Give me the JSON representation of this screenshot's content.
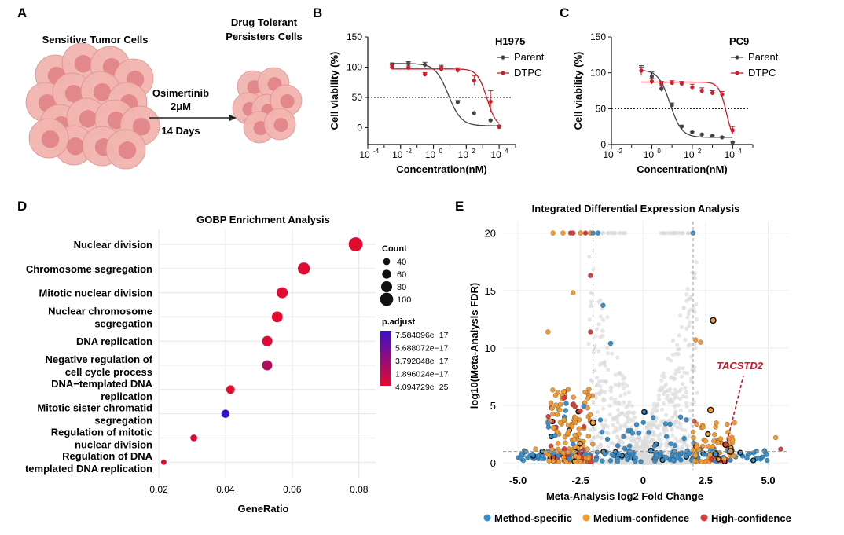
{
  "panels": {
    "A": {
      "letter": "A",
      "left_title": "Sensitive Tumor Cells",
      "right_title_line1": "Drug Tolerant",
      "right_title_line2": "Persisters Cells",
      "drug_line1": "Osimertinib",
      "drug_line2": "2μM",
      "duration": "14 Days",
      "colors": {
        "cell_fill": "#f2b5b0",
        "cell_core": "#e07f82",
        "arrow": "#222222"
      }
    },
    "B": {
      "letter": "B"
    },
    "C": {
      "letter": "C"
    },
    "D": {
      "letter": "D"
    },
    "E": {
      "letter": "E"
    }
  },
  "chart_data": [
    {
      "panel": "B",
      "type": "line",
      "title": "H1975",
      "xlabel": "Concentration(nM)",
      "ylabel": "Cell viability (%)",
      "xscale": "log10",
      "xlim": [
        0.0001,
        100000
      ],
      "ylim": [
        -28,
        150
      ],
      "yticks": [
        0,
        50,
        100,
        150
      ],
      "xtick_labels": [
        "10",
        "10",
        "10",
        "10",
        "10"
      ],
      "xtick_exponents": [
        "-4",
        "-2",
        "0",
        "2",
        "4"
      ],
      "reference_line": 50,
      "legend_position": "top-right",
      "series": [
        {
          "name": "Parent",
          "color": "#444444",
          "x": [
            0.003,
            0.03,
            0.3,
            3,
            30,
            300,
            3000,
            10000
          ],
          "y": [
            104,
            106,
            104,
            98,
            42,
            24,
            12,
            2
          ],
          "err": [
            3,
            3,
            4,
            5,
            3,
            2,
            2,
            2
          ],
          "fit_top": 106,
          "fit_bottom": 3,
          "fit_ec50": 8,
          "fit_hill": 1.1
        },
        {
          "name": "DTPC",
          "color": "#cc1f2b",
          "x": [
            0.003,
            0.03,
            0.3,
            3,
            30,
            300,
            3000,
            10000
          ],
          "y": [
            100,
            99,
            88,
            97,
            95,
            78,
            43,
            1
          ],
          "err": [
            4,
            3,
            3,
            4,
            4,
            8,
            18,
            3
          ],
          "fit_top": 97,
          "fit_bottom": 0,
          "fit_ec50": 1800,
          "fit_hill": 1.5
        }
      ]
    },
    {
      "panel": "C",
      "type": "line",
      "title": "PC9",
      "xlabel": "Concentration(nM)",
      "ylabel": "Cell viability (%)",
      "xscale": "log10",
      "xlim": [
        0.01,
        100000
      ],
      "ylim": [
        0,
        150
      ],
      "yticks": [
        0,
        50,
        100,
        150
      ],
      "xtick_labels": [
        "10",
        "10",
        "10",
        "10"
      ],
      "xtick_exponents": [
        "-2",
        "0",
        "2",
        "4"
      ],
      "reference_line": 50,
      "legend_position": "top-right",
      "series": [
        {
          "name": "Parent",
          "color": "#444444",
          "x": [
            0.3,
            1,
            3,
            10,
            30,
            100,
            300,
            1000,
            3000,
            10000
          ],
          "y": [
            103,
            95,
            78,
            55,
            25,
            17,
            14,
            12,
            10,
            3
          ],
          "err": [
            7,
            6,
            4,
            3,
            2,
            1,
            1,
            1,
            1,
            1
          ],
          "fit_top": 104,
          "fit_bottom": 10,
          "fit_ec50": 8,
          "fit_hill": 1.5
        },
        {
          "name": "DTPC",
          "color": "#cc1f2b",
          "x": [
            0.3,
            1,
            3,
            10,
            30,
            100,
            300,
            1000,
            3000,
            10000
          ],
          "y": [
            103,
            88,
            85,
            86,
            85,
            80,
            75,
            72,
            70,
            20
          ],
          "err": [
            5,
            4,
            3,
            3,
            3,
            4,
            4,
            3,
            4,
            5
          ],
          "fit_top": 87,
          "fit_bottom": 0,
          "fit_ec50": 5000,
          "fit_hill": 2.3
        }
      ]
    },
    {
      "panel": "D",
      "type": "scatter",
      "title": "GOBP Enrichment Analysis",
      "xlabel": "GeneRatio",
      "ylabel": "",
      "xlim": [
        0.02,
        0.085
      ],
      "xticks": [
        0.02,
        0.04,
        0.06,
        0.08
      ],
      "xtick_labels": [
        "0.02",
        "0.04",
        "0.06",
        "0.08"
      ],
      "grid": true,
      "legend_position": "right",
      "size_legend": {
        "title": "Count",
        "values": [
          40,
          60,
          80,
          100
        ]
      },
      "color_legend": {
        "title": "p.adjust",
        "labels": [
          "7.584096e−17",
          "5.688072e−17",
          "3.792048e−17",
          "1.896024e−17",
          "4.094729e−25"
        ],
        "colors": [
          "#3a10c8",
          "#e20b2f"
        ]
      },
      "terms": [
        {
          "label": [
            "Nuclear division"
          ],
          "x": 0.079,
          "count": 108,
          "p": 0.0
        },
        {
          "label": [
            "Chromosome segregation"
          ],
          "x": 0.0635,
          "count": 90,
          "p": 0.0
        },
        {
          "label": [
            "Mitotic nuclear division"
          ],
          "x": 0.057,
          "count": 80,
          "p": 0.0
        },
        {
          "label": [
            "Nuclear chromosome",
            "segregation"
          ],
          "x": 0.0555,
          "count": 78,
          "p": 0.0
        },
        {
          "label": [
            "DNA replication"
          ],
          "x": 0.0525,
          "count": 74,
          "p": 0.05
        },
        {
          "label": [
            "Negative regulation of",
            "cell cycle process"
          ],
          "x": 0.0525,
          "count": 72,
          "p": 0.3
        },
        {
          "label": [
            "DNA−templated DNA",
            "replication"
          ],
          "x": 0.0415,
          "count": 56,
          "p": 0.02
        },
        {
          "label": [
            "Mitotic sister chromatid",
            "segregation"
          ],
          "x": 0.04,
          "count": 54,
          "p": 1.0
        },
        {
          "label": [
            "Regulation of mitotic",
            "nuclear division"
          ],
          "x": 0.0305,
          "count": 40,
          "p": 0.03
        },
        {
          "label": [
            "Regulation of DNA",
            "templated DNA replication"
          ],
          "x": 0.0215,
          "count": 26,
          "p": 0.01
        }
      ]
    },
    {
      "panel": "E",
      "type": "scatter",
      "title": "Integrated Differential Expression Analysis",
      "xlabel": "Meta-Analysis log2 Fold Change",
      "ylabel": "log10(Meta-Analysis FDR)",
      "xlim": [
        -5.6,
        5.8
      ],
      "ylim": [
        -0.6,
        21
      ],
      "xticks": [
        -5.0,
        -2.5,
        0,
        2.5,
        5.0
      ],
      "xtick_labels": [
        "-5.0",
        "-2.5",
        "0",
        "2.5",
        "5.0"
      ],
      "yticks": [
        0,
        5,
        10,
        15,
        20
      ],
      "grid": true,
      "vlines": [
        -2,
        2
      ],
      "hline": 1.0,
      "annotation": {
        "label": "TACSTD2",
        "x": 3.3,
        "y": 1.6,
        "color": "#d0142c"
      },
      "legend_position": "bottom",
      "categories": [
        {
          "name": "Method-specific",
          "color": "#3a8fc9"
        },
        {
          "name": "Medium-confidence",
          "color": "#f39b32"
        },
        {
          "name": "High-confidence",
          "color": "#d8403e"
        }
      ],
      "background_color": "#dcdcdc",
      "highlighted_points": [
        {
          "x": -2.9,
          "y": 20.0,
          "c": 2
        },
        {
          "x": -2.8,
          "y": 20.0,
          "c": 2
        },
        {
          "x": -2.3,
          "y": 20.0,
          "c": 2
        },
        {
          "x": -3.6,
          "y": 20.0,
          "c": 1
        },
        {
          "x": -3.2,
          "y": 20.0,
          "c": 1
        },
        {
          "x": -2.5,
          "y": 20.0,
          "c": 1
        },
        {
          "x": -2.1,
          "y": 20.0,
          "c": 1
        },
        {
          "x": -2.0,
          "y": 20.0,
          "c": 0
        },
        {
          "x": -1.8,
          "y": 20.0,
          "c": 0
        },
        {
          "x": 2.0,
          "y": 20.0,
          "c": 0
        },
        {
          "x": -2.1,
          "y": 16.3,
          "c": 2
        },
        {
          "x": -2.8,
          "y": 14.8,
          "c": 1
        },
        {
          "x": -1.6,
          "y": 13.7,
          "c": 0
        },
        {
          "x": 2.8,
          "y": 12.4,
          "c": 1,
          "ring": true
        },
        {
          "x": -3.8,
          "y": 11.4,
          "c": 1
        },
        {
          "x": -2.1,
          "y": 11.4,
          "c": 2
        },
        {
          "x": 2.1,
          "y": 10.7,
          "c": 1
        },
        {
          "x": 2.3,
          "y": 10.5,
          "c": 1
        },
        {
          "x": -1.3,
          "y": 10.4,
          "c": 0
        },
        {
          "x": 2.7,
          "y": 4.6,
          "c": 1,
          "ring": true
        },
        {
          "x": -2.0,
          "y": 3.5,
          "c": 1,
          "ring": true
        },
        {
          "x": 0.9,
          "y": 3.4,
          "c": 0
        },
        {
          "x": 1.5,
          "y": 4.0,
          "c": 0
        },
        {
          "x": -0.6,
          "y": 2.8,
          "c": 0
        },
        {
          "x": 2.5,
          "y": 1.9,
          "c": 1
        },
        {
          "x": 3.3,
          "y": 1.6,
          "c": 2,
          "ring": true
        },
        {
          "x": 3.1,
          "y": 2.1,
          "c": 1
        },
        {
          "x": 5.3,
          "y": 2.2,
          "c": 1
        },
        {
          "x": 5.5,
          "y": 1.2,
          "c": 2
        },
        {
          "x": -3.9,
          "y": 0.9,
          "c": 1
        },
        {
          "x": -4.3,
          "y": 1.2,
          "c": 1
        },
        {
          "x": 2.9,
          "y": 0.8,
          "c": 0,
          "ring": true
        },
        {
          "x": 3.5,
          "y": 1.0,
          "c": 1,
          "ring": true
        }
      ]
    }
  ]
}
